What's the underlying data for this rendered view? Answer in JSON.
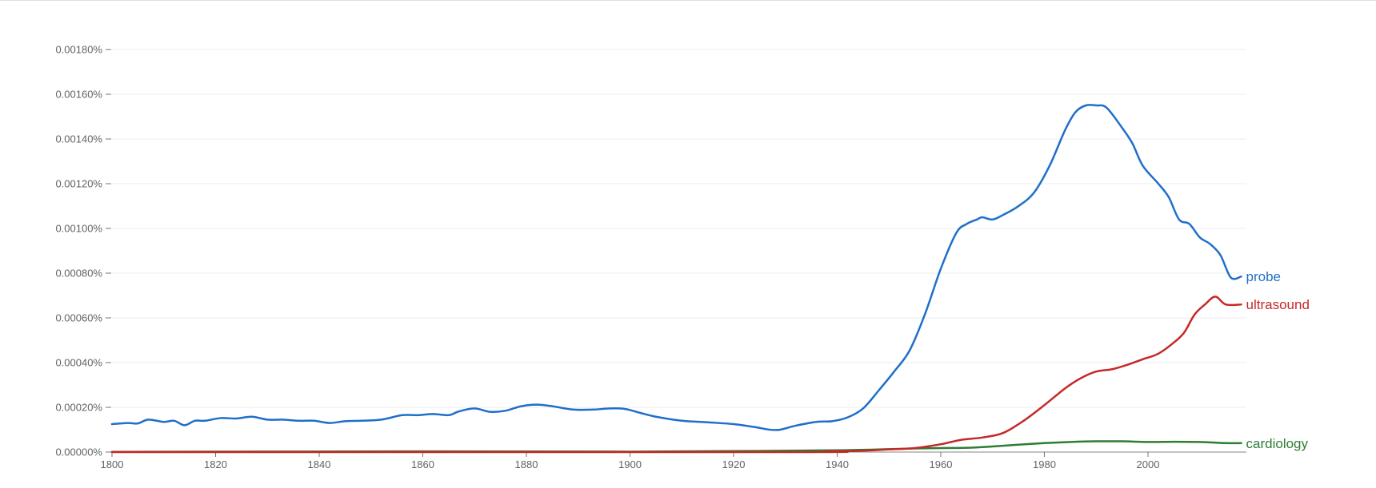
{
  "chart_data": {
    "type": "line",
    "title": "",
    "xlabel": "",
    "ylabel": "",
    "xlim": [
      1800,
      2019
    ],
    "ylim": [
      0,
      0.0019
    ],
    "y_ticks": [
      0,
      0.0002,
      0.0004,
      0.0006,
      0.0008,
      0.001,
      0.0012,
      0.0014,
      0.0016,
      0.0018
    ],
    "y_tick_labels": [
      "0.00000%",
      "0.00020%",
      "0.00040%",
      "0.00060%",
      "0.00080%",
      "0.00100%",
      "0.00120%",
      "0.00140%",
      "0.00160%",
      "0.00180%"
    ],
    "x_ticks": [
      1800,
      1820,
      1840,
      1860,
      1880,
      1900,
      1920,
      1940,
      1960,
      1980,
      2000
    ],
    "x_tick_labels": [
      "1800",
      "1820",
      "1840",
      "1860",
      "1880",
      "1900",
      "1920",
      "1940",
      "1960",
      "1980",
      "2000"
    ],
    "grid": true,
    "legend": "labels at line ends (right)",
    "series": [
      {
        "name": "probe",
        "color": "#1f6fca",
        "points": [
          [
            1800,
            0.000125
          ],
          [
            1803,
            0.00013
          ],
          [
            1805,
            0.000128
          ],
          [
            1807,
            0.000145
          ],
          [
            1810,
            0.000135
          ],
          [
            1812,
            0.00014
          ],
          [
            1814,
            0.00012
          ],
          [
            1816,
            0.00014
          ],
          [
            1818,
            0.00014
          ],
          [
            1821,
            0.000152
          ],
          [
            1824,
            0.00015
          ],
          [
            1827,
            0.000158
          ],
          [
            1830,
            0.000145
          ],
          [
            1833,
            0.000145
          ],
          [
            1836,
            0.00014
          ],
          [
            1839,
            0.00014
          ],
          [
            1842,
            0.00013
          ],
          [
            1845,
            0.000138
          ],
          [
            1848,
            0.00014
          ],
          [
            1852,
            0.000145
          ],
          [
            1856,
            0.000165
          ],
          [
            1859,
            0.000165
          ],
          [
            1862,
            0.00017
          ],
          [
            1865,
            0.000165
          ],
          [
            1867,
            0.000182
          ],
          [
            1870,
            0.000195
          ],
          [
            1873,
            0.00018
          ],
          [
            1876,
            0.000185
          ],
          [
            1879,
            0.000205
          ],
          [
            1882,
            0.000212
          ],
          [
            1885,
            0.000205
          ],
          [
            1889,
            0.00019
          ],
          [
            1893,
            0.00019
          ],
          [
            1896,
            0.000195
          ],
          [
            1899,
            0.000193
          ],
          [
            1902,
            0.000175
          ],
          [
            1905,
            0.000158
          ],
          [
            1910,
            0.00014
          ],
          [
            1915,
            0.000133
          ],
          [
            1920,
            0.000125
          ],
          [
            1924,
            0.000112
          ],
          [
            1927,
            0.0001
          ],
          [
            1929,
            0.0001
          ],
          [
            1932,
            0.000118
          ],
          [
            1936,
            0.000135
          ],
          [
            1939,
            0.000138
          ],
          [
            1942,
            0.000155
          ],
          [
            1945,
            0.000195
          ],
          [
            1948,
            0.000275
          ],
          [
            1951,
            0.00036
          ],
          [
            1954,
            0.000455
          ],
          [
            1957,
            0.00062
          ],
          [
            1960,
            0.00082
          ],
          [
            1963,
            0.00098
          ],
          [
            1965,
            0.00102
          ],
          [
            1967,
            0.00104
          ],
          [
            1968,
            0.00105
          ],
          [
            1970,
            0.00104
          ],
          [
            1972,
            0.00106
          ],
          [
            1975,
            0.0011
          ],
          [
            1978,
            0.00116
          ],
          [
            1981,
            0.00128
          ],
          [
            1984,
            0.00144
          ],
          [
            1986,
            0.00152
          ],
          [
            1988,
            0.00155
          ],
          [
            1990,
            0.00155
          ],
          [
            1992,
            0.00154
          ],
          [
            1995,
            0.00145
          ],
          [
            1997,
            0.00138
          ],
          [
            1999,
            0.00128
          ],
          [
            2002,
            0.0012
          ],
          [
            2004,
            0.00114
          ],
          [
            2006,
            0.00104
          ],
          [
            2008,
            0.00102
          ],
          [
            2010,
            0.00096
          ],
          [
            2012,
            0.00093
          ],
          [
            2014,
            0.00088
          ],
          [
            2016,
            0.00078
          ],
          [
            2018,
            0.000785
          ]
        ]
      },
      {
        "name": "ultrasound",
        "color": "#c62828",
        "points": [
          [
            1800,
            0.0
          ],
          [
            1930,
            0.0
          ],
          [
            1938,
            3e-06
          ],
          [
            1945,
            6e-06
          ],
          [
            1950,
            1.2e-05
          ],
          [
            1955,
            1.8e-05
          ],
          [
            1960,
            3.5e-05
          ],
          [
            1964,
            5.5e-05
          ],
          [
            1968,
            6.5e-05
          ],
          [
            1972,
            8.5e-05
          ],
          [
            1976,
            0.00014
          ],
          [
            1980,
            0.00021
          ],
          [
            1984,
            0.000285
          ],
          [
            1987,
            0.00033
          ],
          [
            1990,
            0.00036
          ],
          [
            1993,
            0.00037
          ],
          [
            1996,
            0.00039
          ],
          [
            1999,
            0.000415
          ],
          [
            2002,
            0.00044
          ],
          [
            2005,
            0.00049
          ],
          [
            2007,
            0.000535
          ],
          [
            2009,
            0.000615
          ],
          [
            2011,
            0.00066
          ],
          [
            2013,
            0.000695
          ],
          [
            2015,
            0.00066
          ],
          [
            2018,
            0.00066
          ]
        ]
      },
      {
        "name": "cardiology",
        "color": "#2e7d32",
        "points": [
          [
            1800,
            1e-06
          ],
          [
            1860,
            3e-06
          ],
          [
            1900,
            2e-06
          ],
          [
            1925,
            5e-06
          ],
          [
            1940,
            8e-06
          ],
          [
            1950,
            1.3e-05
          ],
          [
            1955,
            1.6e-05
          ],
          [
            1960,
            1.8e-05
          ],
          [
            1965,
            1.9e-05
          ],
          [
            1970,
            2.5e-05
          ],
          [
            1975,
            3.3e-05
          ],
          [
            1980,
            4e-05
          ],
          [
            1985,
            4.5e-05
          ],
          [
            1990,
            4.8e-05
          ],
          [
            1995,
            4.8e-05
          ],
          [
            2000,
            4.5e-05
          ],
          [
            2005,
            4.6e-05
          ],
          [
            2010,
            4.5e-05
          ],
          [
            2015,
            4e-05
          ],
          [
            2018,
            4e-05
          ]
        ]
      }
    ]
  }
}
